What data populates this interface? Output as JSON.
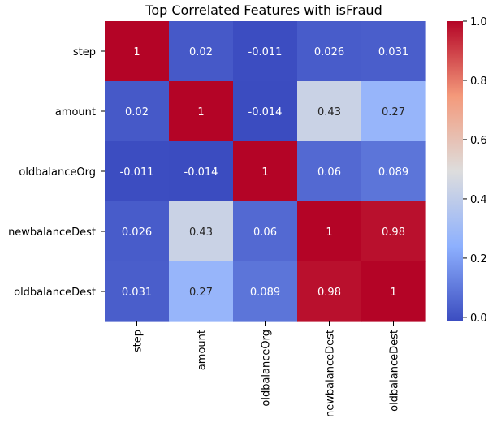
{
  "chart_data": {
    "type": "heatmap",
    "title": "Top Correlated Features with isFraud",
    "rows": [
      "step",
      "amount",
      "oldbalanceOrg",
      "newbalanceDest",
      "oldbalanceDest"
    ],
    "columns": [
      "step",
      "amount",
      "oldbalanceOrg",
      "newbalanceDest",
      "oldbalanceDest"
    ],
    "values": [
      [
        1,
        0.02,
        -0.011,
        0.026,
        0.031
      ],
      [
        0.02,
        1,
        -0.014,
        0.43,
        0.27
      ],
      [
        -0.011,
        -0.014,
        1,
        0.06,
        0.089
      ],
      [
        0.026,
        0.43,
        0.06,
        1,
        0.98
      ],
      [
        0.031,
        0.27,
        0.089,
        0.98,
        1
      ]
    ],
    "labels": [
      [
        "1",
        "0.02",
        "-0.011",
        "0.026",
        "0.031"
      ],
      [
        "0.02",
        "1",
        "-0.014",
        "0.43",
        "0.27"
      ],
      [
        "-0.011",
        "-0.014",
        "1",
        "0.06",
        "0.089"
      ],
      [
        "0.026",
        "0.43",
        "0.06",
        "1",
        "0.98"
      ],
      [
        "0.031",
        "0.27",
        "0.089",
        "0.98",
        "1"
      ]
    ],
    "colormap": "coolwarm",
    "colorbar": {
      "range": [
        -0.014,
        1
      ],
      "ticks": [
        0.0,
        0.2,
        0.4,
        0.6,
        0.8,
        1.0
      ],
      "tick_labels": [
        "0.0",
        "0.2",
        "0.4",
        "0.6",
        "0.8",
        "1.0"
      ]
    }
  }
}
